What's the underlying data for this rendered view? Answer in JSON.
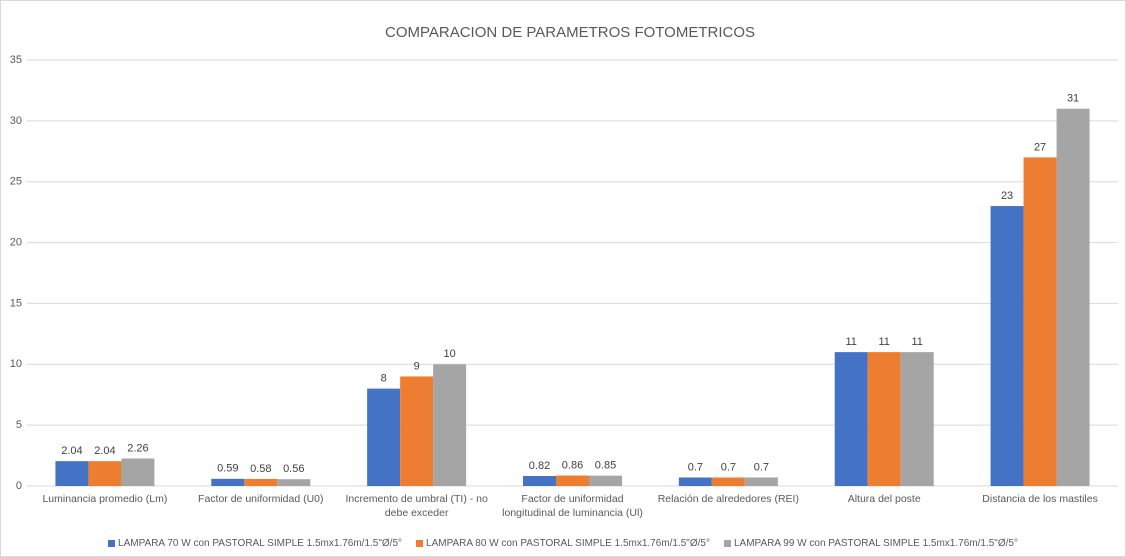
{
  "chart_data": {
    "type": "bar",
    "title": "COMPARACION DE PARAMETROS FOTOMETRICOS",
    "categories": [
      "Luminancia promedio  (Lm)",
      "Factor de uniformidad (U0)",
      "Incremento de umbral (TI) - no debe exceder",
      "Factor de uniformidad longitudinal de luminancia (Ul)",
      "Relación de alrededores (REI)",
      "Altura del poste",
      "Distancia de los mastiles"
    ],
    "series": [
      {
        "name": "LAMPARA 70 W con PASTORAL SIMPLE 1.5mx1.76m/1.5\"Ø/5°",
        "color": "#4472c4",
        "values": [
          2.04,
          0.59,
          8,
          0.82,
          0.7,
          11,
          23
        ]
      },
      {
        "name": "LAMPARA 80 W con PASTORAL SIMPLE 1.5mx1.76m/1.5\"Ø/5°",
        "color": "#ed7d31",
        "values": [
          2.04,
          0.58,
          9,
          0.86,
          0.7,
          11,
          27
        ]
      },
      {
        "name": "LAMPARA 99 W con PASTORAL SIMPLE 1.5mx1.76m/1.5\"Ø/5°",
        "color": "#a5a5a5",
        "values": [
          2.26,
          0.56,
          10,
          0.85,
          0.7,
          11,
          31
        ]
      }
    ],
    "ylim": [
      0,
      35
    ],
    "yticks": [
      0,
      5,
      10,
      15,
      20,
      25,
      30,
      35
    ],
    "grid": true,
    "legend": "bottom"
  }
}
